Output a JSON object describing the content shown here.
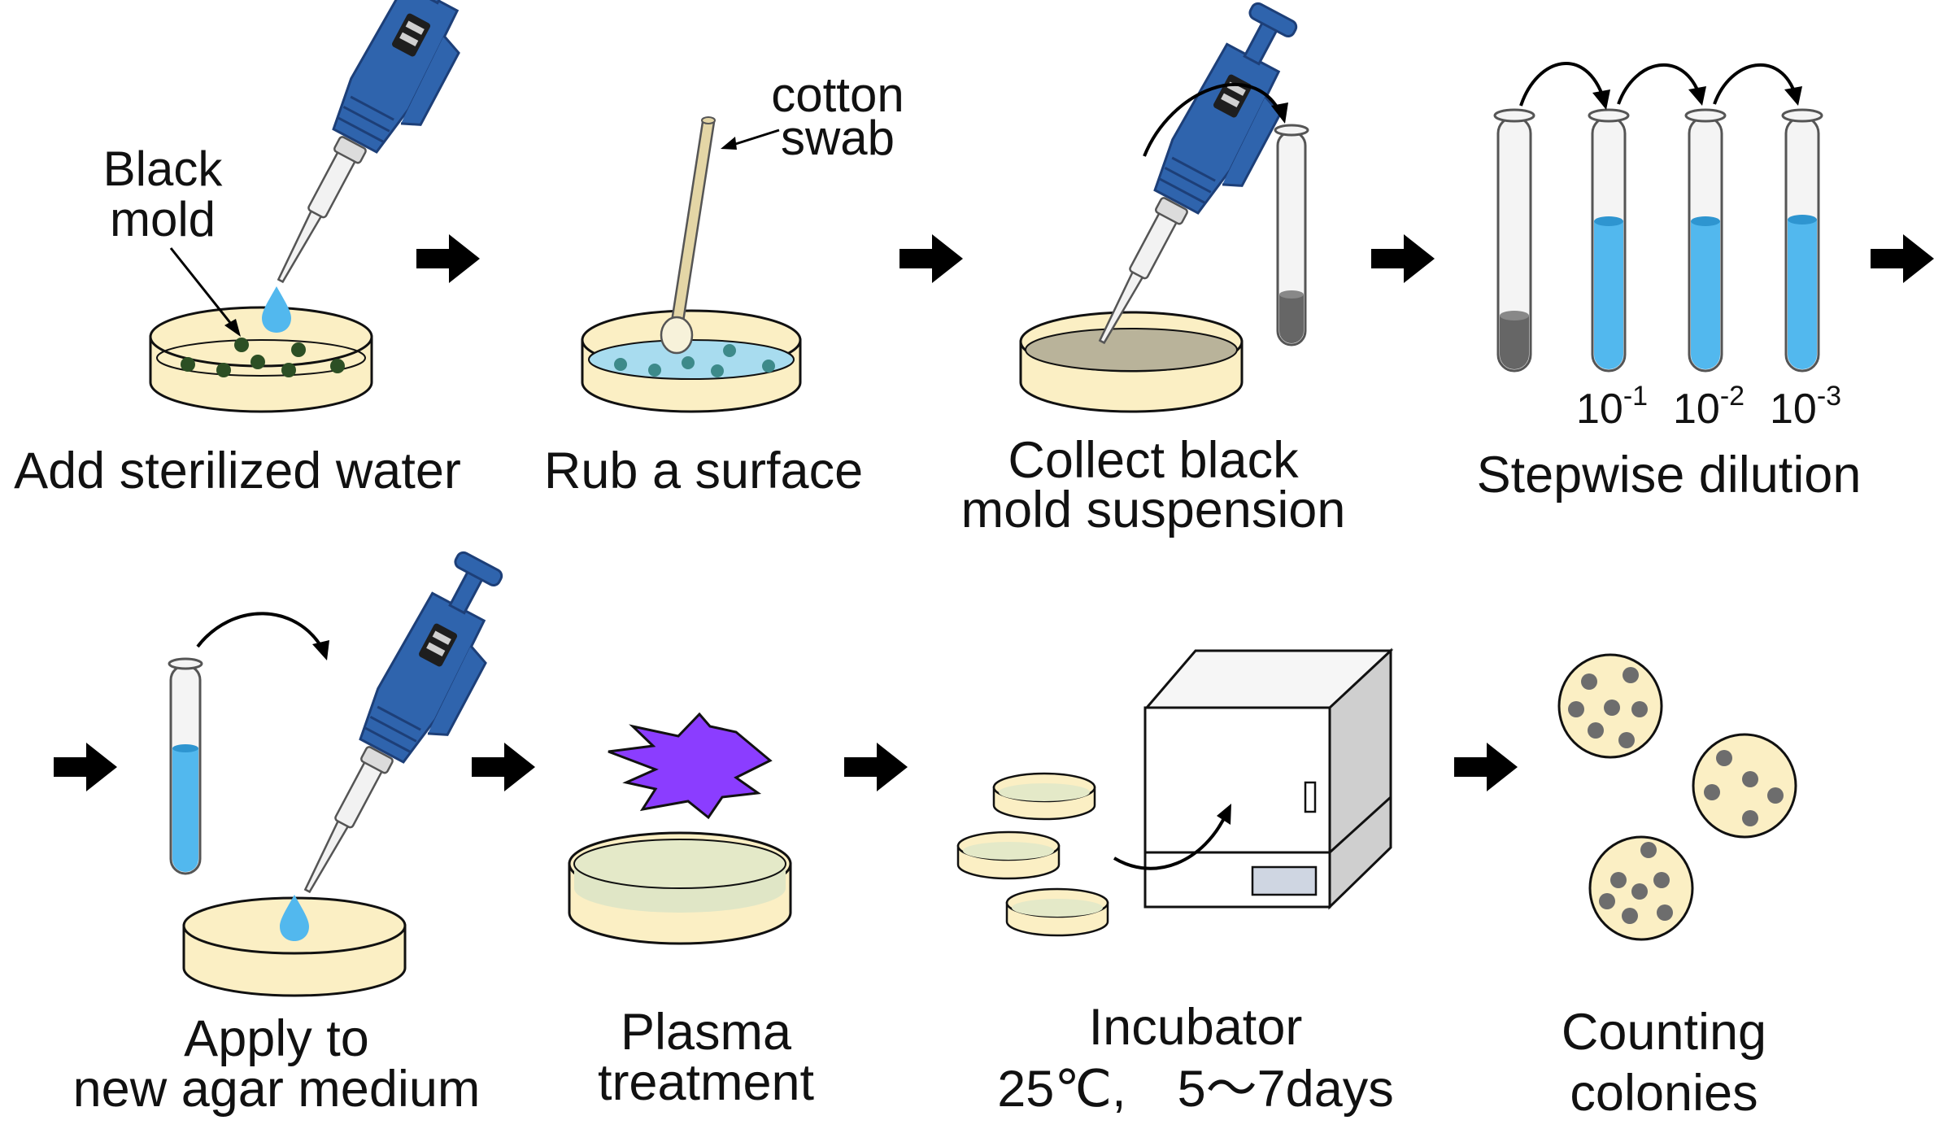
{
  "steps": [
    {
      "id": "add-water",
      "caption": [
        "Add sterilized water"
      ],
      "label": [
        "Black",
        "mold"
      ]
    },
    {
      "id": "rub-surface",
      "caption": [
        "Rub a surface"
      ],
      "label": [
        "cotton",
        "swab"
      ]
    },
    {
      "id": "collect",
      "caption": [
        "Collect black",
        "mold suspension"
      ]
    },
    {
      "id": "dilution",
      "caption": [
        "Stepwise dilution"
      ],
      "dilutions": [
        {
          "base": "10",
          "exp": "-1"
        },
        {
          "base": "10",
          "exp": "-2"
        },
        {
          "base": "10",
          "exp": "-3"
        }
      ]
    },
    {
      "id": "apply",
      "caption": [
        "Apply to",
        "new agar medium"
      ]
    },
    {
      "id": "plasma",
      "caption": [
        "Plasma",
        "treatment"
      ]
    },
    {
      "id": "incubator",
      "caption": [
        "Incubator",
        "25℃,　5～7days"
      ]
    },
    {
      "id": "counting",
      "caption": [
        "Counting",
        "colonies"
      ]
    }
  ],
  "colors": {
    "pipette": "#2f64ad",
    "pipette_dark": "#1d3f78",
    "agar": "#fbefc4",
    "liquid": "#52b8ee",
    "mold": "#2c4f24",
    "colony": "#6d6d6d",
    "plasma": "#8b3dff",
    "arrow": "#000000"
  }
}
